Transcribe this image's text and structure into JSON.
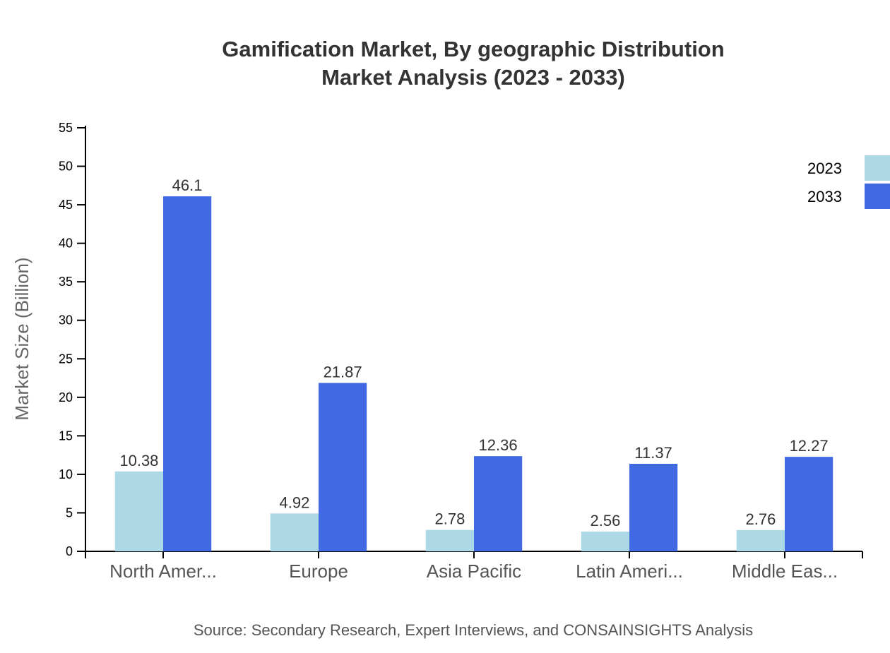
{
  "chart_data": {
    "type": "bar",
    "title": "Gamification Market, By geographic Distribution",
    "subtitle": "Market Analysis (2023 - 2033)",
    "xlabel": "",
    "ylabel": "Market Size (Billion)",
    "ylim": [
      0,
      55
    ],
    "yticks": [
      0,
      5,
      10,
      15,
      20,
      25,
      30,
      35,
      40,
      45,
      50,
      55
    ],
    "categories": [
      "North Amer...",
      "Europe",
      "Asia Pacific",
      "Latin Ameri...",
      "Middle Eas..."
    ],
    "series": [
      {
        "name": "2023",
        "color": "#add8e6",
        "values": [
          10.38,
          4.92,
          2.78,
          2.56,
          2.76
        ]
      },
      {
        "name": "2033",
        "color": "#4169e1",
        "values": [
          46.1,
          21.87,
          12.36,
          11.37,
          12.27
        ]
      }
    ],
    "grid": false,
    "legend_position": "top-right",
    "source": "Source: Secondary Research, Expert Interviews, and CONSAINSIGHTS Analysis"
  }
}
